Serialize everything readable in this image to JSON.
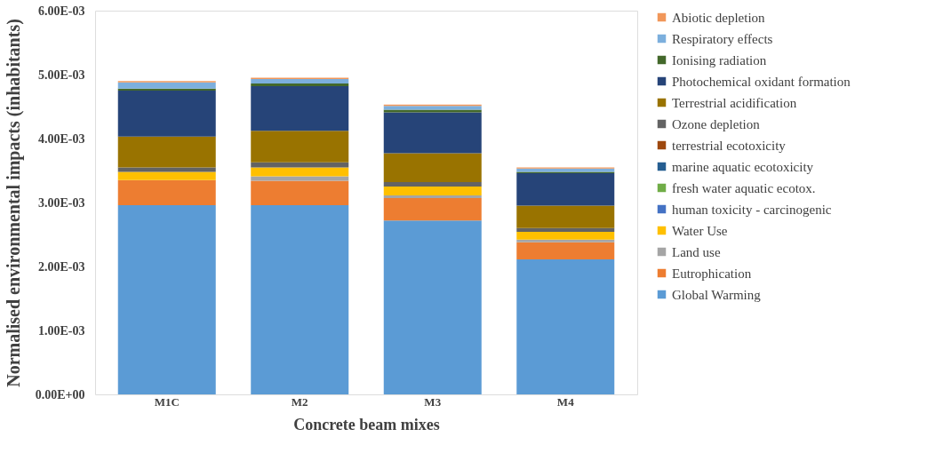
{
  "chart_data": {
    "type": "bar",
    "stacked": true,
    "xlabel": "Concrete beam mixes",
    "ylabel": "Normalised environmental impacts (inhabitants)",
    "categories": [
      "M1C",
      "M2",
      "M3",
      "M4"
    ],
    "series": [
      {
        "name": "Global Warming",
        "color": "#5b9bd5",
        "values": [
          0.00296,
          0.00296,
          0.00272,
          0.00211
        ]
      },
      {
        "name": "Eutrophication",
        "color": "#ed7d31",
        "values": [
          0.00039,
          0.00038,
          0.00035,
          0.00027
        ]
      },
      {
        "name": "Land use",
        "color": "#a5a5a5",
        "values": [
          0,
          7e-05,
          4e-05,
          4e-05
        ]
      },
      {
        "name": "Water Use",
        "color": "#ffc000",
        "values": [
          0.00013,
          0.00014,
          0.00014,
          0.00012
        ]
      },
      {
        "name": "human toxicity - carcinogenic",
        "color": "#4472c4",
        "values": [
          0,
          0,
          0,
          0
        ]
      },
      {
        "name": "fresh water aquatic ecotox.",
        "color": "#70ad47",
        "values": [
          0,
          0,
          0,
          0
        ]
      },
      {
        "name": "marine aquatic ecotoxicity",
        "color": "#255e91",
        "values": [
          0,
          0,
          0,
          0
        ]
      },
      {
        "name": "terrestrial ecotoxicity",
        "color": "#9e480e",
        "values": [
          0,
          0,
          0,
          0
        ]
      },
      {
        "name": "Ozone depletion",
        "color": "#636363",
        "values": [
          7e-05,
          8e-05,
          7e-05,
          6e-05
        ]
      },
      {
        "name": "Terrestrial acidification",
        "color": "#997300",
        "values": [
          0.00048,
          0.00049,
          0.00045,
          0.00035
        ]
      },
      {
        "name": "Photochemical oxidant formation",
        "color": "#264478",
        "values": [
          0.00072,
          0.0007,
          0.00064,
          0.00051
        ]
      },
      {
        "name": "Ionising radiation",
        "color": "#43682b",
        "values": [
          3e-05,
          4e-05,
          4e-05,
          2e-05
        ]
      },
      {
        "name": "Respiratory effects",
        "color": "#7cafdd",
        "values": [
          0.0001,
          7e-05,
          6e-05,
          5e-05
        ]
      },
      {
        "name": "Abiotic depletion",
        "color": "#f1975a",
        "values": [
          2e-05,
          2e-05,
          2e-05,
          2e-05
        ]
      }
    ],
    "ylim": [
      0,
      0.006
    ],
    "yticks": [
      {
        "value": 0,
        "label": "0.00E+00"
      },
      {
        "value": 0.001,
        "label": "1.00E-03"
      },
      {
        "value": 0.002,
        "label": "2.00E-03"
      },
      {
        "value": 0.003,
        "label": "3.00E-03"
      },
      {
        "value": 0.004,
        "label": "4.00E-03"
      },
      {
        "value": 0.005,
        "label": "5.00E-03"
      },
      {
        "value": 0.006,
        "label": "6.00E-03"
      }
    ],
    "grid": false,
    "legend": "right"
  }
}
